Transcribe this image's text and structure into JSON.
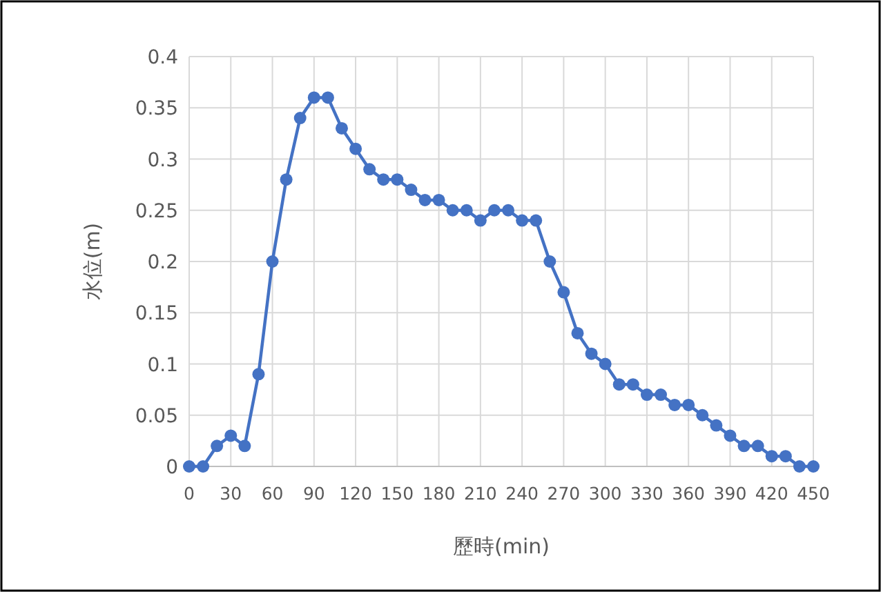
{
  "chart_data": {
    "type": "line",
    "xlabel": "歷時(min)",
    "ylabel": "水位(m)",
    "x": [
      0,
      10,
      20,
      30,
      40,
      50,
      60,
      70,
      80,
      90,
      100,
      110,
      120,
      130,
      140,
      150,
      160,
      170,
      180,
      190,
      200,
      210,
      220,
      230,
      240,
      250,
      260,
      270,
      280,
      290,
      300,
      310,
      320,
      330,
      340,
      350,
      360,
      370,
      380,
      390,
      400,
      410,
      420,
      430,
      440,
      450
    ],
    "series": [
      {
        "color": "#4472c4",
        "values": [
          0,
          0,
          0.02,
          0.03,
          0.02,
          0.09,
          0.2,
          0.28,
          0.34,
          0.36,
          0.36,
          0.33,
          0.31,
          0.29,
          0.28,
          0.28,
          0.27,
          0.26,
          0.26,
          0.25,
          0.25,
          0.24,
          0.25,
          0.25,
          0.24,
          0.24,
          0.2,
          0.17,
          0.13,
          0.11,
          0.1,
          0.08,
          0.08,
          0.07,
          0.07,
          0.06,
          0.06,
          0.05,
          0.04,
          0.03,
          0.02,
          0.02,
          0.01,
          0.01,
          0,
          0
        ]
      }
    ],
    "xlim": [
      0,
      450
    ],
    "ylim": [
      0,
      0.4
    ],
    "xticks": [
      0,
      30,
      60,
      90,
      120,
      150,
      180,
      210,
      240,
      270,
      300,
      330,
      360,
      390,
      420,
      450
    ],
    "yticks": [
      0,
      0.05,
      0.1,
      0.15,
      0.2,
      0.25,
      0.3,
      0.35,
      0.4
    ],
    "grid": true,
    "marker": "circle",
    "line_style": "solid"
  }
}
